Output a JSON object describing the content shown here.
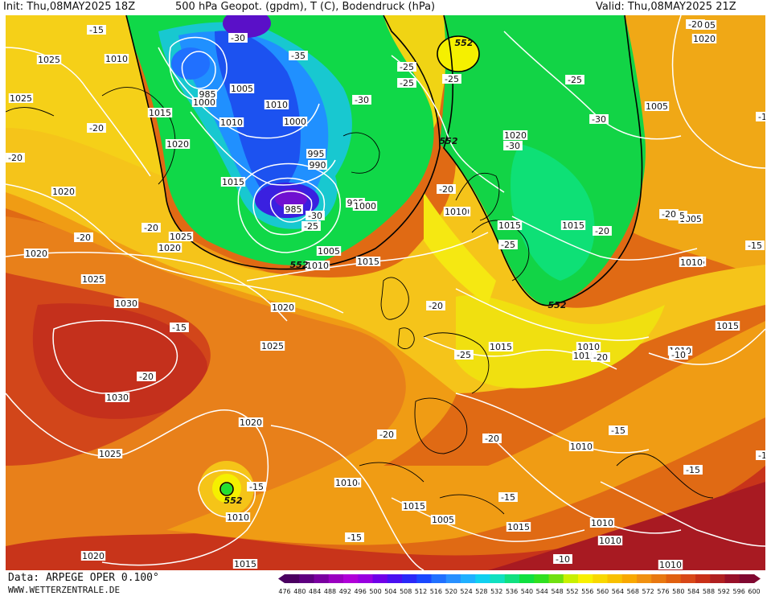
{
  "header": {
    "init": "Init: Thu,08MAY2025 18Z",
    "title": "500 hPa Geopot. (gpdm), T (C), Bodendruck (hPa)",
    "valid": "Valid: Thu,08MAY2025 21Z"
  },
  "footer": {
    "data_source": "Data: ARPEGE OPER 0.100°",
    "website": "WWW.WETTERZENTRALE.DE"
  },
  "colors": {
    "purple": "#6a00a8",
    "deep_blue": "#1a1ee0",
    "blue": "#2f6bff",
    "cyan": "#18c8d8",
    "green": "#12d84a",
    "bright_green": "#24e030",
    "yellow": "#f5f000",
    "gold": "#f2c200",
    "orange": "#f09a10",
    "dark_orange": "#e57010",
    "red_orange": "#d84a14",
    "red": "#b8201c",
    "dark_red": "#8a0a22"
  },
  "map_labels": {
    "pressure": [
      "1005",
      "1025",
      "1010",
      "1025",
      "1015",
      "1010",
      "1020",
      "1020",
      "985",
      "1000",
      "1005",
      "1010",
      "1000",
      "995",
      "990",
      "1015",
      "985",
      "995",
      "1000",
      "1005",
      "1010",
      "1015",
      "1025",
      "1020",
      "1025",
      "1030",
      "1020",
      "1030",
      "1025",
      "1020",
      "1015",
      "1025",
      "1010",
      "1020",
      "1015",
      "1015",
      "1015",
      "1020",
      "1020",
      "1015",
      "1005",
      "1005",
      "1015",
      "1015",
      "1010",
      "1010",
      "1010",
      "1010",
      "1005",
      "1015",
      "1010",
      "1020",
      "1015",
      "1010",
      "1010",
      "1010",
      "1010",
      "1020",
      "1015"
    ],
    "temperature": [
      "-15",
      "-30",
      "-35",
      "-25",
      "-25",
      "-30",
      "-30",
      "-25",
      "-20",
      "-20",
      "-20",
      "-20",
      "-30",
      "-30",
      "-25",
      "-20",
      "-20",
      "-15",
      "-15",
      "-20",
      "-25",
      "-20",
      "-25",
      "-20",
      "-20",
      "-20",
      "-20",
      "-15",
      "-15",
      "-15",
      "-15",
      "-15",
      "-10",
      "-10",
      "-15",
      "-15",
      "-20",
      "-25",
      "-15"
    ],
    "geopotential": [
      "552",
      "552",
      "552",
      "552",
      "552"
    ]
  },
  "legend": {
    "ticks": [
      "476",
      "480",
      "484",
      "488",
      "492",
      "496",
      "500",
      "504",
      "508",
      "512",
      "516",
      "520",
      "524",
      "528",
      "532",
      "536",
      "540",
      "544",
      "548",
      "552",
      "556",
      "560",
      "564",
      "568",
      "572",
      "576",
      "580",
      "584",
      "588",
      "592",
      "596",
      "600"
    ],
    "colors": [
      "#4a0060",
      "#5e0080",
      "#7a00a0",
      "#9a00c0",
      "#b000d8",
      "#9800e0",
      "#7000e8",
      "#4a10f0",
      "#2a28f8",
      "#1a48ff",
      "#2070ff",
      "#2890ff",
      "#20b0ff",
      "#10d0f0",
      "#10e0c0",
      "#10e080",
      "#10e040",
      "#30e020",
      "#70e010",
      "#c8f000",
      "#f8f000",
      "#f8d800",
      "#f8c000",
      "#f8a800",
      "#f09010",
      "#e87810",
      "#e06010",
      "#d84818",
      "#c83018",
      "#b02020",
      "#981028",
      "#800830"
    ]
  }
}
